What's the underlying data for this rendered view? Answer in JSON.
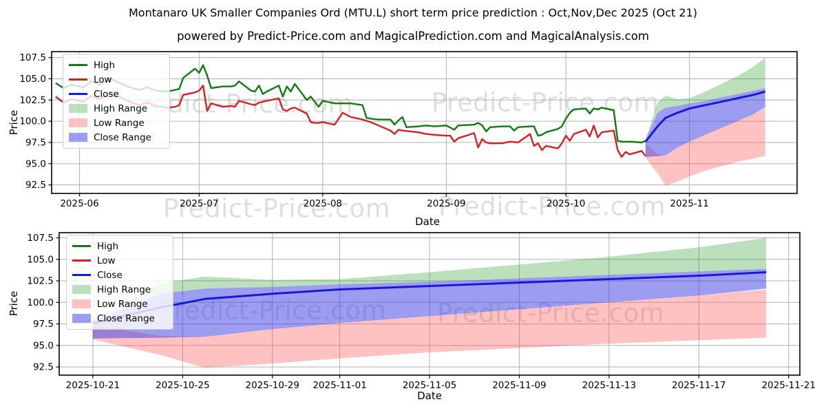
{
  "title": "Montanaro UK Smaller Companies Ord (MTU.L) short term price prediction : Oct,Nov,Dec 2025 (Oct 21)",
  "subtitle": "powered by Predict-Price.com and MagicalPrediction.com and MagicalAnalysis.com",
  "watermark": {
    "text": "Predict-Price.com"
  },
  "colors": {
    "high_line": "#107a10",
    "low_line": "#d62020",
    "close_line": "#1818d8",
    "high_range_fill": "rgba(44,160,44,0.32)",
    "low_range_fill": "rgba(255,70,70,0.33)",
    "close_range_fill": "rgba(58,58,228,0.5)",
    "grid": "#b0b0b0",
    "axis_border": "#000000",
    "tick_text": "#000000"
  },
  "legend": {
    "items": [
      {
        "label": "High",
        "swatch": "line",
        "color": "#107a10"
      },
      {
        "label": "Low",
        "swatch": "line",
        "color": "#d62020"
      },
      {
        "label": "Close",
        "swatch": "line",
        "color": "#1818d8"
      },
      {
        "label": "High Range",
        "swatch": "patch",
        "color": "rgba(44,160,44,0.32)"
      },
      {
        "label": "Low Range",
        "swatch": "patch",
        "color": "rgba(255,70,70,0.33)"
      },
      {
        "label": "Close Range",
        "swatch": "patch",
        "color": "rgba(58,58,228,0.5)"
      }
    ]
  },
  "forecast": {
    "dates": [
      "2025-10-21",
      "2025-10-24",
      "2025-10-26",
      "2025-10-29",
      "2025-11-01",
      "2025-11-05",
      "2025-11-09",
      "2025-11-13",
      "2025-11-17",
      "2025-11-20"
    ],
    "close": [
      97.6,
      99.4,
      100.4,
      101.0,
      101.5,
      101.9,
      102.3,
      102.7,
      103.1,
      103.5
    ],
    "close_range": {
      "lo": [
        95.8,
        95.9,
        96.0,
        96.9,
        97.6,
        98.4,
        99.2,
        100.0,
        100.8,
        101.6
      ],
      "hi": [
        97.8,
        101.0,
        101.6,
        101.8,
        102.1,
        102.4,
        102.8,
        103.2,
        103.6,
        103.9
      ]
    },
    "high_range": {
      "lo": [
        97.8,
        101.0,
        101.6,
        101.8,
        102.1,
        102.4,
        102.8,
        103.2,
        103.6,
        103.9
      ],
      "hi": [
        97.9,
        102.2,
        103.0,
        102.6,
        102.7,
        103.5,
        104.4,
        105.3,
        106.4,
        107.5
      ]
    },
    "low_range": {
      "lo": [
        95.7,
        93.9,
        92.4,
        92.9,
        93.5,
        94.2,
        94.7,
        95.2,
        95.6,
        95.9
      ],
      "hi": [
        97.4,
        96.1,
        96.0,
        96.9,
        97.6,
        98.4,
        99.2,
        100.0,
        100.8,
        101.5
      ]
    }
  },
  "chart_data": [
    {
      "type": "line",
      "name": "history-and-forecast-chart",
      "ylabel": "Price",
      "xlabel": "Date",
      "ylim": [
        91.5,
        108.2
      ],
      "xlim": [
        "2025-05-25",
        "2025-11-28"
      ],
      "grid": true,
      "legend_position": "upper left",
      "yticks": [
        92.5,
        95.0,
        97.5,
        100.0,
        102.5,
        105.0,
        107.5
      ],
      "xticks": [
        {
          "date": "2025-06-01",
          "label": "2025-06"
        },
        {
          "date": "2025-07-01",
          "label": "2025-07"
        },
        {
          "date": "2025-08-01",
          "label": "2025-08"
        },
        {
          "date": "2025-09-01",
          "label": "2025-09"
        },
        {
          "date": "2025-10-01",
          "label": "2025-10"
        },
        {
          "date": "2025-11-01",
          "label": "2025-11"
        }
      ],
      "series": {
        "high": [
          [
            "2025-05-26",
            104.5
          ],
          [
            "2025-05-28",
            103.9
          ],
          [
            "2025-05-30",
            104.3
          ],
          [
            "2025-06-02",
            104.0
          ],
          [
            "2025-06-04",
            104.7
          ],
          [
            "2025-06-06",
            104.3
          ],
          [
            "2025-06-09",
            105.0
          ],
          [
            "2025-06-11",
            104.5
          ],
          [
            "2025-06-13",
            104.1
          ],
          [
            "2025-06-16",
            103.7
          ],
          [
            "2025-06-18",
            104.0
          ],
          [
            "2025-06-20",
            103.6
          ],
          [
            "2025-06-23",
            103.5
          ],
          [
            "2025-06-25",
            103.7
          ],
          [
            "2025-06-26",
            103.8
          ],
          [
            "2025-06-27",
            105.1
          ],
          [
            "2025-06-30",
            106.2
          ],
          [
            "2025-07-01",
            105.7
          ],
          [
            "2025-07-02",
            106.6
          ],
          [
            "2025-07-03",
            105.4
          ],
          [
            "2025-07-04",
            103.9
          ],
          [
            "2025-07-07",
            104.1
          ],
          [
            "2025-07-09",
            104.1
          ],
          [
            "2025-07-10",
            104.2
          ],
          [
            "2025-07-11",
            104.7
          ],
          [
            "2025-07-14",
            103.6
          ],
          [
            "2025-07-15",
            103.5
          ],
          [
            "2025-07-16",
            104.2
          ],
          [
            "2025-07-17",
            103.2
          ],
          [
            "2025-07-18",
            103.5
          ],
          [
            "2025-07-21",
            104.2
          ],
          [
            "2025-07-22",
            102.9
          ],
          [
            "2025-07-23",
            104.1
          ],
          [
            "2025-07-24",
            103.5
          ],
          [
            "2025-07-25",
            104.4
          ],
          [
            "2025-07-28",
            102.5
          ],
          [
            "2025-07-29",
            102.9
          ],
          [
            "2025-07-30",
            102.3
          ],
          [
            "2025-07-31",
            101.7
          ],
          [
            "2025-08-01",
            102.4
          ],
          [
            "2025-08-04",
            102.1
          ],
          [
            "2025-08-06",
            102.1
          ],
          [
            "2025-08-08",
            102.1
          ],
          [
            "2025-08-11",
            101.9
          ],
          [
            "2025-08-12",
            100.4
          ],
          [
            "2025-08-13",
            100.3
          ],
          [
            "2025-08-15",
            100.2
          ],
          [
            "2025-08-18",
            100.2
          ],
          [
            "2025-08-19",
            99.6
          ],
          [
            "2025-08-20",
            100.1
          ],
          [
            "2025-08-21",
            100.5
          ],
          [
            "2025-08-22",
            99.3
          ],
          [
            "2025-08-25",
            99.4
          ],
          [
            "2025-08-27",
            99.5
          ],
          [
            "2025-08-29",
            99.4
          ],
          [
            "2025-09-01",
            99.5
          ],
          [
            "2025-09-03",
            99.0
          ],
          [
            "2025-09-04",
            99.5
          ],
          [
            "2025-09-08",
            99.6
          ],
          [
            "2025-09-09",
            99.8
          ],
          [
            "2025-09-10",
            99.5
          ],
          [
            "2025-09-11",
            98.8
          ],
          [
            "2025-09-12",
            99.3
          ],
          [
            "2025-09-15",
            99.4
          ],
          [
            "2025-09-17",
            99.4
          ],
          [
            "2025-09-18",
            98.9
          ],
          [
            "2025-09-19",
            99.3
          ],
          [
            "2025-09-22",
            99.4
          ],
          [
            "2025-09-23",
            99.4
          ],
          [
            "2025-09-24",
            98.3
          ],
          [
            "2025-09-25",
            98.4
          ],
          [
            "2025-09-26",
            98.7
          ],
          [
            "2025-09-29",
            99.1
          ],
          [
            "2025-09-30",
            99.4
          ],
          [
            "2025-10-01",
            100.3
          ],
          [
            "2025-10-02",
            101.0
          ],
          [
            "2025-10-03",
            101.4
          ],
          [
            "2025-10-06",
            101.5
          ],
          [
            "2025-10-07",
            100.9
          ],
          [
            "2025-10-08",
            101.5
          ],
          [
            "2025-10-09",
            101.4
          ],
          [
            "2025-10-10",
            101.6
          ],
          [
            "2025-10-13",
            101.3
          ],
          [
            "2025-10-14",
            97.7
          ],
          [
            "2025-10-15",
            97.6
          ],
          [
            "2025-10-16",
            97.6
          ],
          [
            "2025-10-17",
            97.6
          ],
          [
            "2025-10-20",
            97.5
          ],
          [
            "2025-10-21",
            97.7
          ]
        ],
        "low": [
          [
            "2025-05-26",
            102.9
          ],
          [
            "2025-05-28",
            102.2
          ],
          [
            "2025-05-30",
            102.6
          ],
          [
            "2025-06-02",
            102.3
          ],
          [
            "2025-06-04",
            103.0
          ],
          [
            "2025-06-06",
            102.6
          ],
          [
            "2025-06-09",
            103.3
          ],
          [
            "2025-06-11",
            102.9
          ],
          [
            "2025-06-13",
            102.4
          ],
          [
            "2025-06-16",
            101.9
          ],
          [
            "2025-06-18",
            102.2
          ],
          [
            "2025-06-20",
            101.8
          ],
          [
            "2025-06-23",
            101.6
          ],
          [
            "2025-06-25",
            101.7
          ],
          [
            "2025-06-26",
            101.9
          ],
          [
            "2025-06-27",
            103.1
          ],
          [
            "2025-06-30",
            103.4
          ],
          [
            "2025-07-01",
            103.6
          ],
          [
            "2025-07-02",
            104.2
          ],
          [
            "2025-07-03",
            101.2
          ],
          [
            "2025-07-04",
            102.1
          ],
          [
            "2025-07-07",
            101.7
          ],
          [
            "2025-07-09",
            101.8
          ],
          [
            "2025-07-10",
            101.7
          ],
          [
            "2025-07-11",
            102.4
          ],
          [
            "2025-07-14",
            102.0
          ],
          [
            "2025-07-15",
            101.9
          ],
          [
            "2025-07-16",
            102.2
          ],
          [
            "2025-07-17",
            102.3
          ],
          [
            "2025-07-18",
            102.4
          ],
          [
            "2025-07-21",
            102.7
          ],
          [
            "2025-07-22",
            101.4
          ],
          [
            "2025-07-23",
            101.2
          ],
          [
            "2025-07-24",
            101.5
          ],
          [
            "2025-07-25",
            101.6
          ],
          [
            "2025-07-28",
            100.9
          ],
          [
            "2025-07-29",
            99.9
          ],
          [
            "2025-07-30",
            99.8
          ],
          [
            "2025-07-31",
            99.8
          ],
          [
            "2025-08-01",
            99.9
          ],
          [
            "2025-08-04",
            99.6
          ],
          [
            "2025-08-06",
            101.0
          ],
          [
            "2025-08-08",
            100.5
          ],
          [
            "2025-08-11",
            100.2
          ],
          [
            "2025-08-13",
            99.9
          ],
          [
            "2025-08-15",
            99.5
          ],
          [
            "2025-08-18",
            98.9
          ],
          [
            "2025-08-19",
            98.5
          ],
          [
            "2025-08-20",
            99.0
          ],
          [
            "2025-08-21",
            98.9
          ],
          [
            "2025-08-25",
            98.7
          ],
          [
            "2025-08-27",
            98.5
          ],
          [
            "2025-08-29",
            98.4
          ],
          [
            "2025-09-01",
            98.3
          ],
          [
            "2025-09-02",
            98.3
          ],
          [
            "2025-09-03",
            97.6
          ],
          [
            "2025-09-04",
            98.0
          ],
          [
            "2025-09-08",
            98.6
          ],
          [
            "2025-09-09",
            96.9
          ],
          [
            "2025-09-10",
            97.9
          ],
          [
            "2025-09-11",
            97.5
          ],
          [
            "2025-09-12",
            97.4
          ],
          [
            "2025-09-15",
            97.4
          ],
          [
            "2025-09-17",
            97.6
          ],
          [
            "2025-09-19",
            97.5
          ],
          [
            "2025-09-22",
            98.5
          ],
          [
            "2025-09-23",
            97.1
          ],
          [
            "2025-09-24",
            97.4
          ],
          [
            "2025-09-25",
            96.6
          ],
          [
            "2025-09-26",
            97.1
          ],
          [
            "2025-09-29",
            96.8
          ],
          [
            "2025-09-30",
            97.4
          ],
          [
            "2025-10-01",
            98.3
          ],
          [
            "2025-10-02",
            97.7
          ],
          [
            "2025-10-03",
            98.5
          ],
          [
            "2025-10-06",
            99.0
          ],
          [
            "2025-10-07",
            98.2
          ],
          [
            "2025-10-08",
            99.5
          ],
          [
            "2025-10-09",
            98.1
          ],
          [
            "2025-10-10",
            98.7
          ],
          [
            "2025-10-13",
            98.9
          ],
          [
            "2025-10-14",
            96.6
          ],
          [
            "2025-10-15",
            95.8
          ],
          [
            "2025-10-16",
            96.4
          ],
          [
            "2025-10-17",
            96.1
          ],
          [
            "2025-10-20",
            96.5
          ],
          [
            "2025-10-21",
            95.9
          ]
        ]
      },
      "forecast_series": [
        "close",
        "close_range",
        "high_range",
        "low_range"
      ]
    },
    {
      "type": "line",
      "name": "forecast-detail-chart",
      "ylabel": "Price",
      "xlabel": "Date",
      "ylim": [
        91.55,
        108.1
      ],
      "xlim": [
        "2025-10-19",
        "2025-11-21"
      ],
      "grid": true,
      "legend_position": "upper left",
      "yticks": [
        92.5,
        95.0,
        97.5,
        100.0,
        102.5,
        105.0,
        107.5
      ],
      "xticks": [
        {
          "date": "2025-10-21",
          "label": "2025-10-21"
        },
        {
          "date": "2025-10-25",
          "label": "2025-10-25"
        },
        {
          "date": "2025-10-29",
          "label": "2025-10-29"
        },
        {
          "date": "2025-11-01",
          "label": "2025-11-01"
        },
        {
          "date": "2025-11-05",
          "label": "2025-11-05"
        },
        {
          "date": "2025-11-09",
          "label": "2025-11-09"
        },
        {
          "date": "2025-11-13",
          "label": "2025-11-13"
        },
        {
          "date": "2025-11-17",
          "label": "2025-11-17"
        },
        {
          "date": "2025-11-21",
          "label": "2025-11-21"
        }
      ],
      "series": {},
      "forecast_series": [
        "close",
        "close_range",
        "high_range",
        "low_range"
      ]
    }
  ]
}
